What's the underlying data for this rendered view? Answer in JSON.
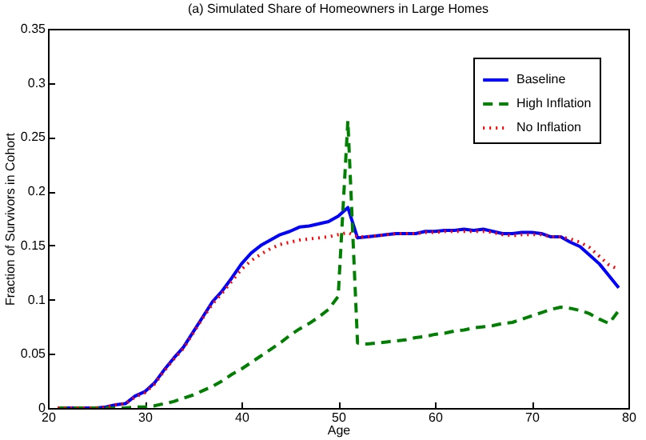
{
  "chart_data": {
    "type": "line",
    "title": "(a) Simulated Share of Homeowners in Large Homes",
    "xlabel": "Age",
    "ylabel": "Fraction of Survivors in Cohort",
    "x": [
      21,
      22,
      23,
      24,
      25,
      26,
      27,
      28,
      29,
      30,
      31,
      32,
      33,
      34,
      35,
      36,
      37,
      38,
      39,
      40,
      41,
      42,
      43,
      44,
      45,
      46,
      47,
      48,
      49,
      50,
      51,
      52,
      53,
      54,
      55,
      56,
      57,
      58,
      59,
      60,
      61,
      62,
      63,
      64,
      65,
      66,
      67,
      68,
      69,
      70,
      71,
      72,
      73,
      74,
      75,
      76,
      77,
      78,
      79
    ],
    "series": [
      {
        "name": "Baseline",
        "color": "#0000ff",
        "line_style": "solid",
        "values": [
          0,
          0,
          0,
          0,
          0,
          0.001,
          0.003,
          0.004,
          0.011,
          0.015,
          0.023,
          0.035,
          0.046,
          0.056,
          0.07,
          0.084,
          0.098,
          0.108,
          0.12,
          0.133,
          0.143,
          0.15,
          0.155,
          0.16,
          0.163,
          0.167,
          0.168,
          0.17,
          0.172,
          0.177,
          0.185,
          0.157,
          0.158,
          0.159,
          0.16,
          0.161,
          0.161,
          0.161,
          0.163,
          0.163,
          0.164,
          0.164,
          0.165,
          0.164,
          0.165,
          0.163,
          0.161,
          0.161,
          0.162,
          0.162,
          0.161,
          0.158,
          0.158,
          0.153,
          0.149,
          0.141,
          0.133,
          0.122,
          0.111
        ]
      },
      {
        "name": "High Inflation",
        "color": "#008000",
        "line_style": "dashed",
        "values": [
          0,
          0,
          0,
          0,
          0,
          0,
          0,
          0,
          0.001,
          0.001,
          0.002,
          0.004,
          0.006,
          0.009,
          0.012,
          0.016,
          0.02,
          0.025,
          0.031,
          0.036,
          0.042,
          0.048,
          0.054,
          0.06,
          0.067,
          0.073,
          0.078,
          0.084,
          0.091,
          0.103,
          0.265,
          0.06,
          0.059,
          0.06,
          0.061,
          0.062,
          0.063,
          0.065,
          0.066,
          0.068,
          0.069,
          0.071,
          0.072,
          0.074,
          0.075,
          0.076,
          0.078,
          0.079,
          0.082,
          0.085,
          0.088,
          0.091,
          0.093,
          0.092,
          0.09,
          0.087,
          0.082,
          0.078,
          0.09
        ]
      },
      {
        "name": "No Inflation",
        "color": "#ff0000",
        "line_style": "dotted",
        "values": [
          0,
          0,
          0,
          0,
          0,
          0.001,
          0.003,
          0.004,
          0.01,
          0.014,
          0.022,
          0.034,
          0.045,
          0.055,
          0.069,
          0.083,
          0.096,
          0.106,
          0.117,
          0.128,
          0.136,
          0.142,
          0.147,
          0.151,
          0.153,
          0.155,
          0.156,
          0.157,
          0.158,
          0.16,
          0.162,
          0.158,
          0.158,
          0.159,
          0.16,
          0.161,
          0.161,
          0.161,
          0.162,
          0.162,
          0.163,
          0.163,
          0.163,
          0.163,
          0.163,
          0.162,
          0.16,
          0.159,
          0.16,
          0.16,
          0.16,
          0.158,
          0.158,
          0.156,
          0.153,
          0.148,
          0.14,
          0.132,
          0.128
        ]
      }
    ],
    "xlim": [
      20,
      80
    ],
    "xticks": [
      20,
      30,
      40,
      50,
      60,
      70,
      80
    ],
    "ylim": [
      0,
      0.35
    ],
    "yticks": [
      0,
      0.05,
      0.1,
      0.15,
      0.2,
      0.25,
      0.3,
      0.35
    ],
    "grid": false,
    "legend": "top right"
  }
}
